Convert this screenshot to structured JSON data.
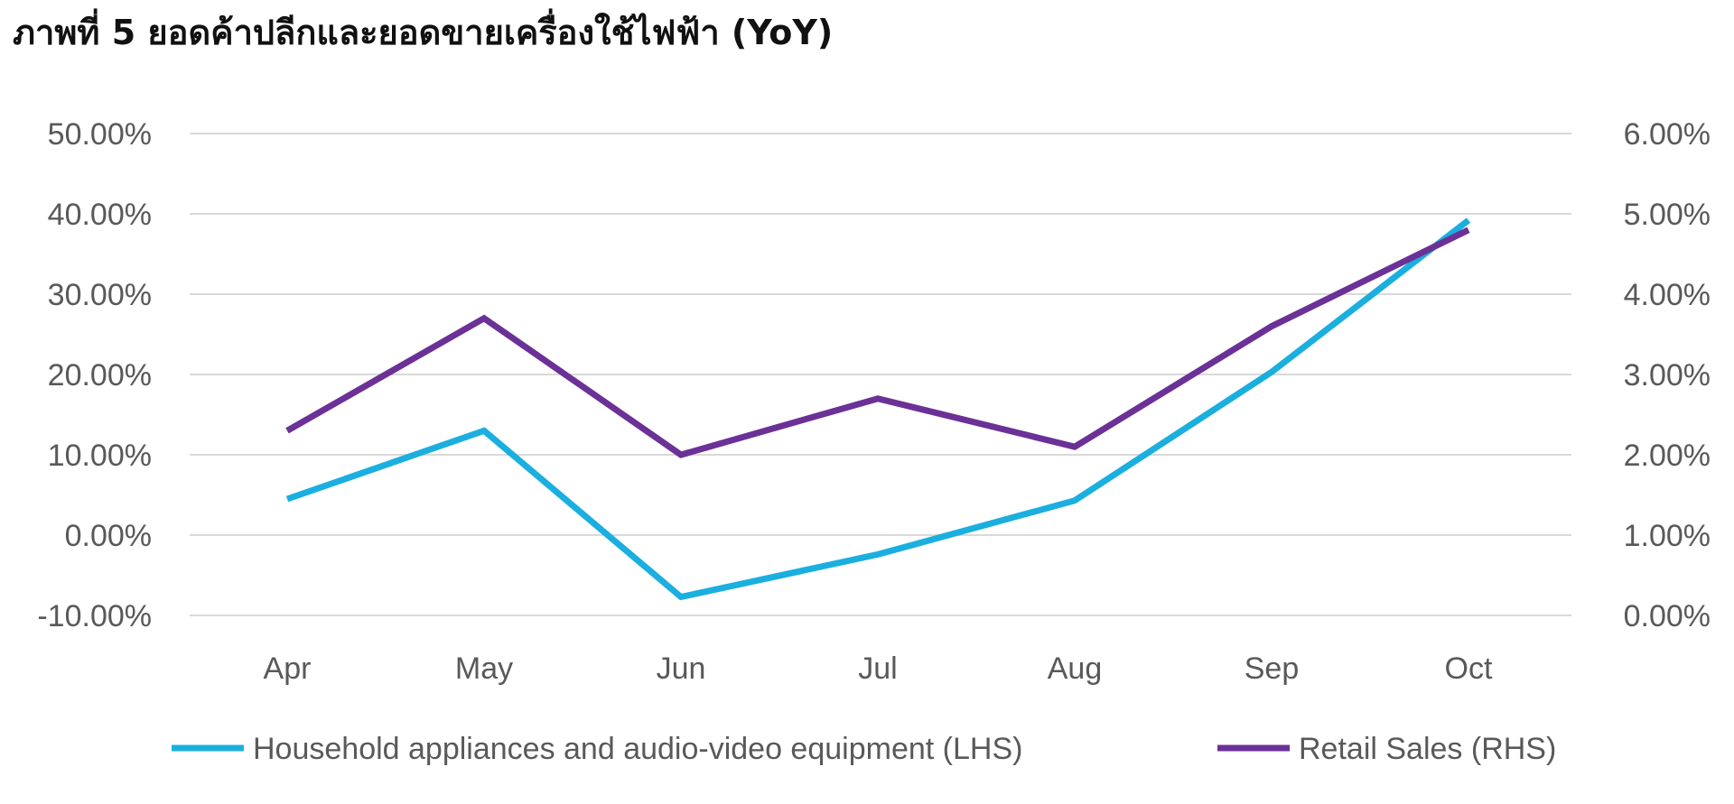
{
  "chart_data": {
    "type": "line",
    "title": "ภาพที่ 5 ยอดค้าปลีกและยอดขายเครื่องใช้ไฟฟ้า (YoY)",
    "categories": [
      "Apr",
      "May",
      "Jun",
      "Jul",
      "Aug",
      "Sep",
      "Oct"
    ],
    "series": [
      {
        "name": "Household appliances and audio-video equipment (LHS)",
        "axis": "left",
        "color": "#1AAFDF",
        "values": [
          4.5,
          13.0,
          -7.7,
          -2.4,
          4.3,
          20.3,
          39.2
        ]
      },
      {
        "name": "Retail Sales (RHS)",
        "axis": "right",
        "color": "#6B3197",
        "values": [
          2.3,
          3.7,
          2.0,
          2.7,
          2.1,
          3.6,
          4.8
        ]
      }
    ],
    "y_left": {
      "min": -10,
      "max": 50,
      "step": 10,
      "ticks": [
        "-10.00%",
        "0.00%",
        "10.00%",
        "20.00%",
        "30.00%",
        "40.00%",
        "50.00%"
      ]
    },
    "y_right": {
      "min": 0,
      "max": 6,
      "step": 1,
      "ticks": [
        "0.00%",
        "1.00%",
        "2.00%",
        "3.00%",
        "4.00%",
        "5.00%",
        "6.00%"
      ]
    },
    "grid": true,
    "legend_position": "bottom"
  }
}
